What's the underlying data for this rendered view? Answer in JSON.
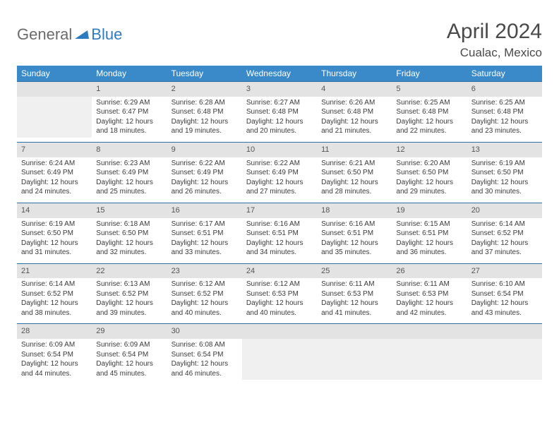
{
  "brand": {
    "part1": "General",
    "part2": "Blue"
  },
  "title": "April 2024",
  "location": "Cualac, Mexico",
  "colors": {
    "header_bg": "#3a8ac9",
    "gray_bg": "#e3e3e3",
    "empty_bg": "#f0f0f0",
    "row_border": "#2f6fa3",
    "title_color": "#4a4a4a",
    "text_color": "#3a3a3a"
  },
  "dayNames": [
    "Sunday",
    "Monday",
    "Tuesday",
    "Wednesday",
    "Thursday",
    "Friday",
    "Saturday"
  ],
  "weeks": [
    [
      null,
      {
        "d": "1",
        "sr": "6:29 AM",
        "ss": "6:47 PM",
        "dl": "12 hours and 18 minutes."
      },
      {
        "d": "2",
        "sr": "6:28 AM",
        "ss": "6:48 PM",
        "dl": "12 hours and 19 minutes."
      },
      {
        "d": "3",
        "sr": "6:27 AM",
        "ss": "6:48 PM",
        "dl": "12 hours and 20 minutes."
      },
      {
        "d": "4",
        "sr": "6:26 AM",
        "ss": "6:48 PM",
        "dl": "12 hours and 21 minutes."
      },
      {
        "d": "5",
        "sr": "6:25 AM",
        "ss": "6:48 PM",
        "dl": "12 hours and 22 minutes."
      },
      {
        "d": "6",
        "sr": "6:25 AM",
        "ss": "6:48 PM",
        "dl": "12 hours and 23 minutes."
      }
    ],
    [
      {
        "d": "7",
        "sr": "6:24 AM",
        "ss": "6:49 PM",
        "dl": "12 hours and 24 minutes."
      },
      {
        "d": "8",
        "sr": "6:23 AM",
        "ss": "6:49 PM",
        "dl": "12 hours and 25 minutes."
      },
      {
        "d": "9",
        "sr": "6:22 AM",
        "ss": "6:49 PM",
        "dl": "12 hours and 26 minutes."
      },
      {
        "d": "10",
        "sr": "6:22 AM",
        "ss": "6:49 PM",
        "dl": "12 hours and 27 minutes."
      },
      {
        "d": "11",
        "sr": "6:21 AM",
        "ss": "6:50 PM",
        "dl": "12 hours and 28 minutes."
      },
      {
        "d": "12",
        "sr": "6:20 AM",
        "ss": "6:50 PM",
        "dl": "12 hours and 29 minutes."
      },
      {
        "d": "13",
        "sr": "6:19 AM",
        "ss": "6:50 PM",
        "dl": "12 hours and 30 minutes."
      }
    ],
    [
      {
        "d": "14",
        "sr": "6:19 AM",
        "ss": "6:50 PM",
        "dl": "12 hours and 31 minutes."
      },
      {
        "d": "15",
        "sr": "6:18 AM",
        "ss": "6:50 PM",
        "dl": "12 hours and 32 minutes."
      },
      {
        "d": "16",
        "sr": "6:17 AM",
        "ss": "6:51 PM",
        "dl": "12 hours and 33 minutes."
      },
      {
        "d": "17",
        "sr": "6:16 AM",
        "ss": "6:51 PM",
        "dl": "12 hours and 34 minutes."
      },
      {
        "d": "18",
        "sr": "6:16 AM",
        "ss": "6:51 PM",
        "dl": "12 hours and 35 minutes."
      },
      {
        "d": "19",
        "sr": "6:15 AM",
        "ss": "6:51 PM",
        "dl": "12 hours and 36 minutes."
      },
      {
        "d": "20",
        "sr": "6:14 AM",
        "ss": "6:52 PM",
        "dl": "12 hours and 37 minutes."
      }
    ],
    [
      {
        "d": "21",
        "sr": "6:14 AM",
        "ss": "6:52 PM",
        "dl": "12 hours and 38 minutes."
      },
      {
        "d": "22",
        "sr": "6:13 AM",
        "ss": "6:52 PM",
        "dl": "12 hours and 39 minutes."
      },
      {
        "d": "23",
        "sr": "6:12 AM",
        "ss": "6:52 PM",
        "dl": "12 hours and 40 minutes."
      },
      {
        "d": "24",
        "sr": "6:12 AM",
        "ss": "6:53 PM",
        "dl": "12 hours and 40 minutes."
      },
      {
        "d": "25",
        "sr": "6:11 AM",
        "ss": "6:53 PM",
        "dl": "12 hours and 41 minutes."
      },
      {
        "d": "26",
        "sr": "6:11 AM",
        "ss": "6:53 PM",
        "dl": "12 hours and 42 minutes."
      },
      {
        "d": "27",
        "sr": "6:10 AM",
        "ss": "6:54 PM",
        "dl": "12 hours and 43 minutes."
      }
    ],
    [
      {
        "d": "28",
        "sr": "6:09 AM",
        "ss": "6:54 PM",
        "dl": "12 hours and 44 minutes."
      },
      {
        "d": "29",
        "sr": "6:09 AM",
        "ss": "6:54 PM",
        "dl": "12 hours and 45 minutes."
      },
      {
        "d": "30",
        "sr": "6:08 AM",
        "ss": "6:54 PM",
        "dl": "12 hours and 46 minutes."
      },
      null,
      null,
      null,
      null
    ]
  ],
  "labels": {
    "sunrise": "Sunrise:",
    "sunset": "Sunset:",
    "daylight": "Daylight:"
  }
}
